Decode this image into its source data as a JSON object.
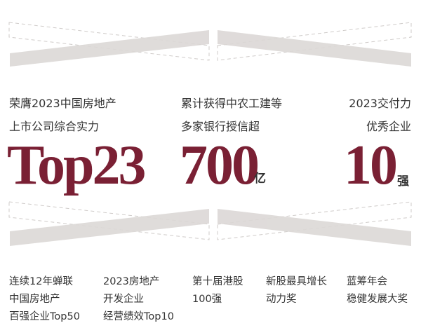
{
  "colors": {
    "accent": "#7a2034",
    "band": "#dcd8d6",
    "dash": "#cfcbc9",
    "text": "#333333"
  },
  "stats": [
    {
      "lines": [
        "荣膺2023中国房地产",
        "上市公司综合实力"
      ],
      "value": "Top23",
      "unit": ""
    },
    {
      "lines": [
        "累计获得中农工建等",
        "多家银行授信超"
      ],
      "value": "700",
      "unit": "亿"
    },
    {
      "lines": [
        "2023交付力",
        "优秀企业"
      ],
      "value": "10",
      "unit": "强"
    }
  ],
  "awards": [
    {
      "lines": [
        "连续12年蝉联",
        "中国房地产",
        "百强企业Top50"
      ]
    },
    {
      "lines": [
        "2023房地产",
        "开发企业",
        "经营绩效Top10"
      ]
    },
    {
      "lines": [
        "第十届港股",
        "100强"
      ]
    },
    {
      "lines": [
        "新股最具增长",
        "动力奖"
      ]
    },
    {
      "lines": [
        "蓝筹年会",
        "稳健发展大奖"
      ]
    }
  ]
}
